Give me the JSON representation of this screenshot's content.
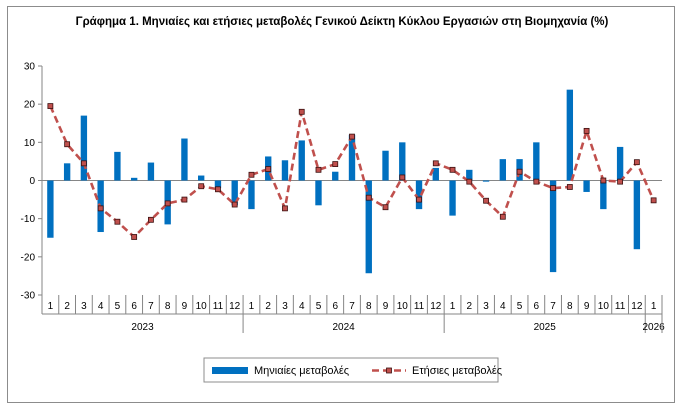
{
  "chart_data": {
    "type": "bar",
    "title": "Γράφημα 1. Μηνιαίες και ετήσιες μεταβολές  Γενικού Δείκτη Κύκλου Εργασιών στη Βιομηχανία (%)",
    "xlabel": "",
    "ylabel": "",
    "ylim": [
      -30,
      30
    ],
    "yticks": [
      -30,
      -20,
      -10,
      0,
      10,
      20,
      30
    ],
    "grid": false,
    "legend_position": "bottom",
    "categories": [
      "1",
      "2",
      "3",
      "4",
      "5",
      "6",
      "7",
      "8",
      "9",
      "10",
      "11",
      "12",
      "1",
      "2",
      "3",
      "4",
      "5",
      "6",
      "7",
      "8",
      "9",
      "10",
      "11",
      "12",
      "1",
      "2",
      "3",
      "4",
      "5",
      "6",
      "7",
      "8",
      "9",
      "10",
      "11",
      "12",
      "1"
    ],
    "years": [
      {
        "label": "2023",
        "count": 12
      },
      {
        "label": "2024",
        "count": 12
      },
      {
        "label": "2025",
        "count": 12
      },
      {
        "label": "2026",
        "count": 1
      }
    ],
    "series": [
      {
        "name": "Μηνιαίες μεταβολές",
        "kind": "bar",
        "color": "#0070c0",
        "values": [
          -15.0,
          4.5,
          17.0,
          -13.5,
          7.5,
          0.7,
          4.7,
          -11.5,
          11.0,
          1.3,
          -2.0,
          -6.5,
          -7.5,
          6.3,
          5.3,
          10.5,
          -6.5,
          2.3,
          12.0,
          -24.3,
          7.8,
          10.0,
          -7.5,
          3.3,
          -9.2,
          2.8,
          -0.3,
          5.6,
          5.6,
          10.0,
          -24.0,
          23.8,
          -3.0,
          -7.5,
          8.8,
          -18.0,
          0
        ]
      },
      {
        "name": "Ετήσιες μεταβολές",
        "kind": "line",
        "color": "#c0504d",
        "values": [
          19.5,
          9.5,
          4.5,
          -7.3,
          -10.8,
          -14.8,
          -10.3,
          -6.0,
          -5.0,
          -1.5,
          -2.3,
          -6.3,
          1.5,
          3.0,
          -7.3,
          18.0,
          2.8,
          4.3,
          11.5,
          -4.5,
          -7.0,
          0.8,
          -5.0,
          4.5,
          2.8,
          -0.3,
          -5.3,
          -9.5,
          2.3,
          -0.3,
          -2.0,
          -1.7,
          13.0,
          0.0,
          -0.3,
          4.8,
          -5.2
        ]
      }
    ]
  }
}
